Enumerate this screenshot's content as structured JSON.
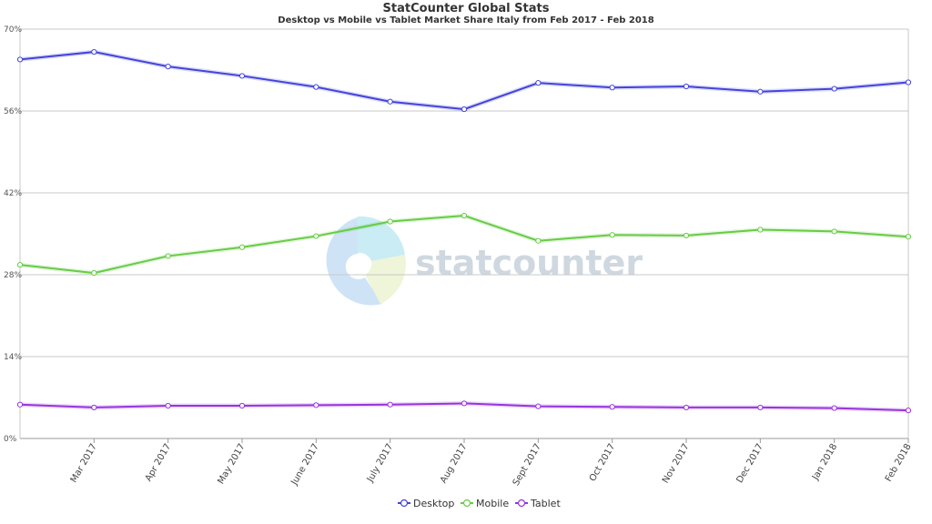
{
  "chart_data": {
    "type": "line",
    "title": "StatCounter Global Stats",
    "subtitle": "Desktop vs Mobile vs Tablet Market Share Italy from Feb 2017 - Feb 2018",
    "watermark": "statcounter",
    "xlabel": "",
    "ylabel": "",
    "categories": [
      "Feb 2017",
      "Mar 2017",
      "Apr 2017",
      "May 2017",
      "June 2017",
      "July 2017",
      "Aug 2017",
      "Sept 2017",
      "Oct 2017",
      "Nov 2017",
      "Dec 2017",
      "Jan 2018",
      "Feb 2018"
    ],
    "x_tick_labels": [
      "Mar 2017",
      "Apr 2017",
      "May 2017",
      "June 2017",
      "July 2017",
      "Aug 2017",
      "Sept 2017",
      "Oct 2017",
      "Nov 2017",
      "Dec 2017",
      "Jan 2018",
      "Feb 2018"
    ],
    "y_ticks": [
      "0%",
      "14%",
      "28%",
      "42%",
      "56%",
      "70%"
    ],
    "ylim": [
      0,
      70
    ],
    "grid": true,
    "legend_position": "bottom",
    "series": [
      {
        "name": "Desktop",
        "color": "#4444dd",
        "values": [
          64.8,
          66.1,
          63.6,
          62.0,
          60.1,
          57.6,
          56.3,
          60.8,
          60.0,
          60.2,
          59.3,
          59.8,
          60.9
        ]
      },
      {
        "name": "Mobile",
        "color": "#66cc44",
        "values": [
          29.7,
          28.3,
          31.2,
          32.7,
          34.6,
          37.1,
          38.1,
          33.8,
          34.8,
          34.7,
          35.7,
          35.4,
          34.5
        ]
      },
      {
        "name": "Tablet",
        "color": "#9933dd",
        "values": [
          5.8,
          5.3,
          5.6,
          5.6,
          5.7,
          5.8,
          6.0,
          5.5,
          5.4,
          5.3,
          5.3,
          5.2,
          4.8
        ]
      }
    ]
  }
}
